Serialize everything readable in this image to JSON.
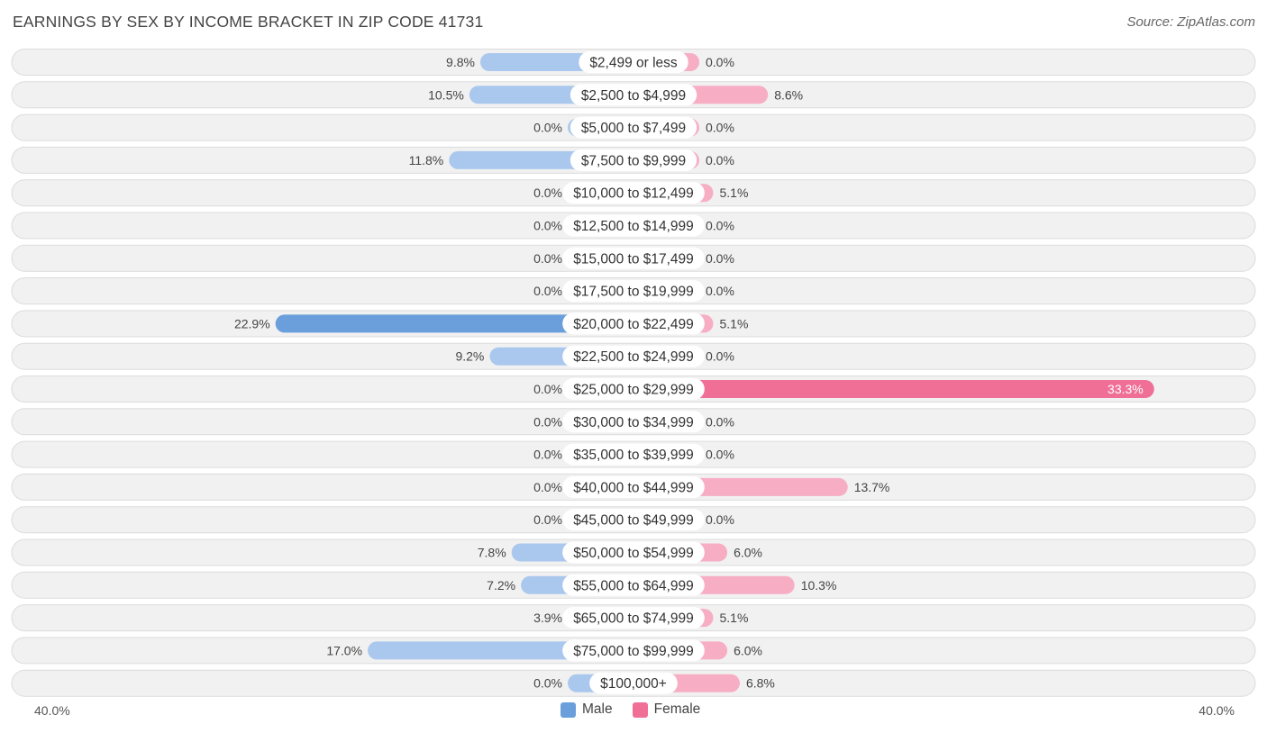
{
  "header": {
    "title": "EARNINGS BY SEX BY INCOME BRACKET IN ZIP CODE 41731",
    "source": "Source: ZipAtlas.com"
  },
  "colors": {
    "male_light": "#aac8ed",
    "male_dark": "#6a9fdc",
    "female_light": "#f7aec4",
    "female_dark": "#f06f97"
  },
  "axis": {
    "left_label": "40.0%",
    "right_label": "40.0%"
  },
  "legend": {
    "male": "Male",
    "female": "Female"
  },
  "chart_data": {
    "type": "bar",
    "orientation": "horizontal-diverging",
    "title": "EARNINGS BY SEX BY INCOME BRACKET IN ZIP CODE 41731",
    "xlim": [
      -40,
      40
    ],
    "categories": [
      "$2,499 or less",
      "$2,500 to $4,999",
      "$5,000 to $7,499",
      "$7,500 to $9,999",
      "$10,000 to $12,499",
      "$12,500 to $14,999",
      "$15,000 to $17,499",
      "$17,500 to $19,999",
      "$20,000 to $22,499",
      "$22,500 to $24,999",
      "$25,000 to $29,999",
      "$30,000 to $34,999",
      "$35,000 to $39,999",
      "$40,000 to $44,999",
      "$45,000 to $49,999",
      "$50,000 to $54,999",
      "$55,000 to $64,999",
      "$65,000 to $74,999",
      "$75,000 to $99,999",
      "$100,000+"
    ],
    "series": [
      {
        "name": "Male",
        "values": [
          9.8,
          10.5,
          0.0,
          11.8,
          0.0,
          0.0,
          0.0,
          0.0,
          22.9,
          9.2,
          0.0,
          0.0,
          0.0,
          0.0,
          0.0,
          7.8,
          7.2,
          3.9,
          17.0,
          0.0
        ],
        "labels": [
          "9.8%",
          "10.5%",
          "0.0%",
          "11.8%",
          "0.0%",
          "0.0%",
          "0.0%",
          "0.0%",
          "22.9%",
          "9.2%",
          "0.0%",
          "0.0%",
          "0.0%",
          "0.0%",
          "0.0%",
          "7.8%",
          "7.2%",
          "3.9%",
          "17.0%",
          "0.0%"
        ]
      },
      {
        "name": "Female",
        "values": [
          0.0,
          8.6,
          0.0,
          0.0,
          5.1,
          0.0,
          0.0,
          0.0,
          5.1,
          0.0,
          33.3,
          0.0,
          0.0,
          13.7,
          0.0,
          6.0,
          10.3,
          5.1,
          6.0,
          6.8
        ],
        "labels": [
          "0.0%",
          "8.6%",
          "0.0%",
          "0.0%",
          "5.1%",
          "0.0%",
          "0.0%",
          "0.0%",
          "5.1%",
          "0.0%",
          "33.3%",
          "0.0%",
          "0.0%",
          "13.7%",
          "0.0%",
          "6.0%",
          "10.3%",
          "5.1%",
          "6.0%",
          "6.8%"
        ]
      }
    ]
  }
}
